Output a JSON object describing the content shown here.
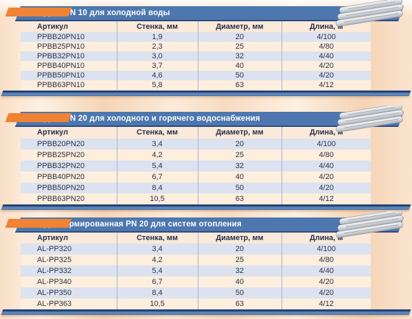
{
  "page": {
    "language": "ru",
    "colors": {
      "banner_blue": "#4d77ae",
      "banner_navy_edge": "#2d4b7d",
      "accent_orange": "#f08334",
      "row_blue": "#dce2ef",
      "row_cream": "#fdeedd",
      "header_cream": "#fbe9d9",
      "divider": "#a6b2cb",
      "text_dark": "#2c3246",
      "background_peach": "#f8dcc2"
    }
  },
  "tables": [
    {
      "title": "Труба PN 10 для холодной воды",
      "icon": "pipes-stack-icon",
      "columns": [
        "Артикул",
        "Стенка, мм",
        "Диаметр, мм",
        "Длина, м"
      ],
      "rows": [
        [
          "PPBB20PN10",
          "1,9",
          "20",
          "4/100"
        ],
        [
          "PPBB25PN10",
          "2,3",
          "25",
          "4/80"
        ],
        [
          "PPBB32PN10",
          "3,0",
          "32",
          "4/40"
        ],
        [
          "PPBB40PN10",
          "3,7",
          "40",
          "4/20"
        ],
        [
          "PPBB50PN10",
          "4,6",
          "50",
          "4/20"
        ],
        [
          "PPBB63PN10",
          "5,8",
          "63",
          "4/12"
        ]
      ]
    },
    {
      "title": "Труба PN 20 для холодного и горячего водоснабжения",
      "icon": "pipes-stack-icon",
      "columns": [
        "Артикул",
        "Стенка, мм",
        "Диаметр, мм",
        "Длина, м"
      ],
      "rows": [
        [
          "PPBB20PN20",
          "3,4",
          "20",
          "4/100"
        ],
        [
          "PPBB25PN20",
          "4,2",
          "25",
          "4/80"
        ],
        [
          "PPBB32PN20",
          "5,4",
          "32",
          "4/40"
        ],
        [
          "PPBB40PN20",
          "6,7",
          "40",
          "4/20"
        ],
        [
          "PPBB50PN20",
          "8,4",
          "50",
          "4/20"
        ],
        [
          "PPBB63PN20",
          "10,5",
          "63",
          "4/12"
        ]
      ]
    },
    {
      "title": "Труба армированная PN 20 для систем отопления",
      "icon": "pipes-stack-icon",
      "columns": [
        "Артикул",
        "Стенка, мм",
        "Диаметр, мм",
        "Длина, м"
      ],
      "rows": [
        [
          "AL-PP320",
          "3,4",
          "20",
          "4/100"
        ],
        [
          "AL-PP325",
          "4,2",
          "25",
          "4/80"
        ],
        [
          "AL-PP332",
          "5,4",
          "32",
          "4/40"
        ],
        [
          "AL-PP340",
          "6,7",
          "40",
          "4/20"
        ],
        [
          "AL-PP350",
          "8,4",
          "50",
          "4/20"
        ],
        [
          "AL-PP363",
          "10,5",
          "63",
          "4/12"
        ]
      ]
    }
  ]
}
